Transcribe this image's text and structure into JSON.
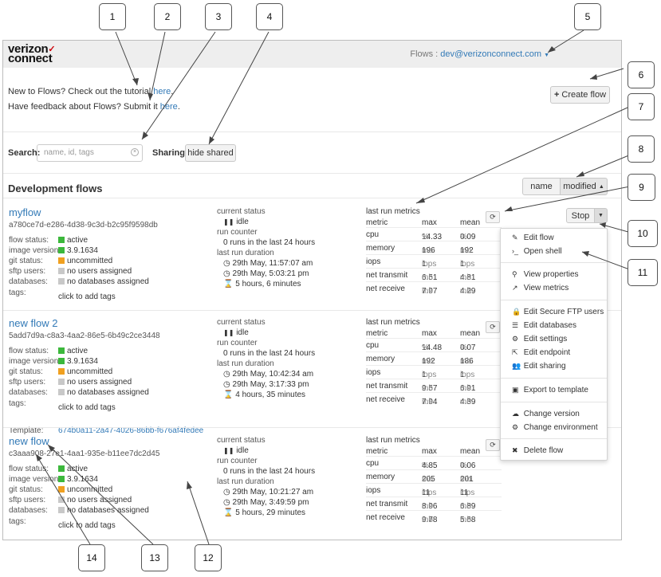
{
  "brand": {
    "line1": "verizon",
    "check": "✓",
    "line2": "connect"
  },
  "topbar": {
    "label": "Flows :",
    "user": "dev@verizonconnect.com"
  },
  "intro": {
    "tutorial_text": "New to Flows? Check out the tutorial",
    "tutorial_link": "here",
    "feedback_text": "Have feedback about Flows? Submit it",
    "feedback_link": "here"
  },
  "create_flow_label": "Create flow",
  "search": {
    "label": "Search:",
    "placeholder": "name, id, tags"
  },
  "sharing": {
    "label": "Sharing:",
    "button": "hide shared"
  },
  "section_title": "Development flows",
  "sort": {
    "name": "name",
    "modified": "modified"
  },
  "labels": {
    "flow_status": "flow status:",
    "image_version": "image version:",
    "git_status": "git status:",
    "sftp_users": "sftp users:",
    "databases": "databases:",
    "tags": "tags:",
    "current_status": "current status",
    "run_counter": "run counter",
    "last_run_duration": "last run duration",
    "last_run_metrics": "last run metrics",
    "metric": "metric",
    "max": "max",
    "mean": "mean",
    "template": "Template:"
  },
  "colors": {
    "active": "#3cb83c",
    "uncommitted": "#f0a020",
    "none": "#c8c8c8",
    "link": "#337ab7"
  },
  "flows": [
    {
      "name": "myflow",
      "id": "a780ce7d-e286-4d38-9c3d-b2c95f9598db",
      "status": "active",
      "image_version": "3.9.1634",
      "git": "uncommitted",
      "sftp": "no users assigned",
      "databases": "no databases assigned",
      "tags": "click to add tags",
      "current": "idle",
      "runs": "0 runs in the last 24 hours",
      "start": "29th May, 11:57:07 am",
      "end": "29th May, 5:03:21 pm",
      "duration": "5 hours, 6 minutes",
      "metrics": [
        {
          "name": "cpu",
          "max": "14.33",
          "max_unit": "%",
          "mean": "0.09",
          "mean_unit": "%"
        },
        {
          "name": "memory",
          "max": "196",
          "max_unit": "mb",
          "mean": "192",
          "mean_unit": "mb"
        },
        {
          "name": "iops",
          "max": "1",
          "max_unit": "iops",
          "mean": "1",
          "mean_unit": "iops"
        },
        {
          "name": "net transmit",
          "max": "6.51",
          "max_unit": "mb",
          "mean": "4.81",
          "mean_unit": "mb"
        },
        {
          "name": "net receive",
          "max": "7.97",
          "max_unit": "mb",
          "mean": "4.29",
          "mean_unit": "mb"
        }
      ]
    },
    {
      "name": "new flow 2",
      "id": "5add7d9a-c8a3-4aa2-86e5-6b49c2ce3448",
      "status": "active",
      "image_version": "3.9.1634",
      "git": "uncommitted",
      "sftp": "no users assigned",
      "databases": "no databases assigned",
      "tags": "click to add tags",
      "current": "idle",
      "runs": "0 runs in the last 24 hours",
      "start": "29th May, 10:42:34 am",
      "end": "29th May, 3:17:33 pm",
      "duration": "4 hours, 35 minutes",
      "template": "674b0a11-2a47-4026-86bb-f676af4fedee",
      "metrics": [
        {
          "name": "cpu",
          "max": "14.48",
          "max_unit": "%",
          "mean": "0.07",
          "mean_unit": "%"
        },
        {
          "name": "memory",
          "max": "192",
          "max_unit": "mb",
          "mean": "186",
          "mean_unit": "mb"
        },
        {
          "name": "iops",
          "max": "1",
          "max_unit": "iops",
          "mean": "1",
          "mean_unit": "iops"
        },
        {
          "name": "net transmit",
          "max": "9.57",
          "max_unit": "mb",
          "mean": "6.91",
          "mean_unit": "mb"
        },
        {
          "name": "net receive",
          "max": "7.94",
          "max_unit": "mb",
          "mean": "4.39",
          "mean_unit": "mb"
        }
      ]
    },
    {
      "name": "new flow",
      "id": "c3aaa908-27e1-4aa1-935e-b11ee7dc2d45",
      "status": "active",
      "image_version": "3.9.1634",
      "git": "uncommitted",
      "sftp": "no users assigned",
      "databases": "no databases assigned",
      "tags": "click to add tags",
      "current": "idle",
      "runs": "0 runs in the last 24 hours",
      "start": "29th May, 10:21:27 am",
      "end": "29th May, 3:49:59 pm",
      "duration": "5 hours, 29 minutes",
      "metrics": [
        {
          "name": "cpu",
          "max": "4.85",
          "max_unit": "%",
          "mean": "0.06",
          "mean_unit": "%"
        },
        {
          "name": "memory",
          "max": "205",
          "max_unit": "mb",
          "mean": "201",
          "mean_unit": "mb"
        },
        {
          "name": "iops",
          "max": "11",
          "max_unit": "iops",
          "mean": "11",
          "mean_unit": "iops"
        },
        {
          "name": "net transmit",
          "max": "8.96",
          "max_unit": "mb",
          "mean": "6.89",
          "mean_unit": "mb"
        },
        {
          "name": "net receive",
          "max": "9.78",
          "max_unit": "mb",
          "mean": "5.68",
          "mean_unit": "mb"
        }
      ]
    }
  ],
  "stop_label": "Stop",
  "menu": [
    {
      "label": "Edit flow",
      "icon": "pencil-icon"
    },
    {
      "label": "Open shell",
      "icon": "terminal-icon"
    },
    {
      "label": "View properties",
      "icon": "magnifier-icon"
    },
    {
      "label": "View metrics",
      "icon": "line-chart-icon"
    },
    {
      "label": "Edit Secure FTP users",
      "icon": "lock-icon"
    },
    {
      "label": "Edit databases",
      "icon": "database-icon"
    },
    {
      "label": "Edit settings",
      "icon": "cog-icon"
    },
    {
      "label": "Edit endpoint",
      "icon": "external-link-icon"
    },
    {
      "label": "Edit sharing",
      "icon": "users-icon"
    },
    {
      "label": "Export to template",
      "icon": "save-icon"
    },
    {
      "label": "Change version",
      "icon": "cloud-upload-icon"
    },
    {
      "label": "Change environment",
      "icon": "cog-icon"
    },
    {
      "label": "Delete flow",
      "icon": "close-icon"
    }
  ],
  "callouts": [
    "1",
    "2",
    "3",
    "4",
    "5",
    "6",
    "7",
    "8",
    "9",
    "10",
    "11",
    "12",
    "13",
    "14"
  ]
}
